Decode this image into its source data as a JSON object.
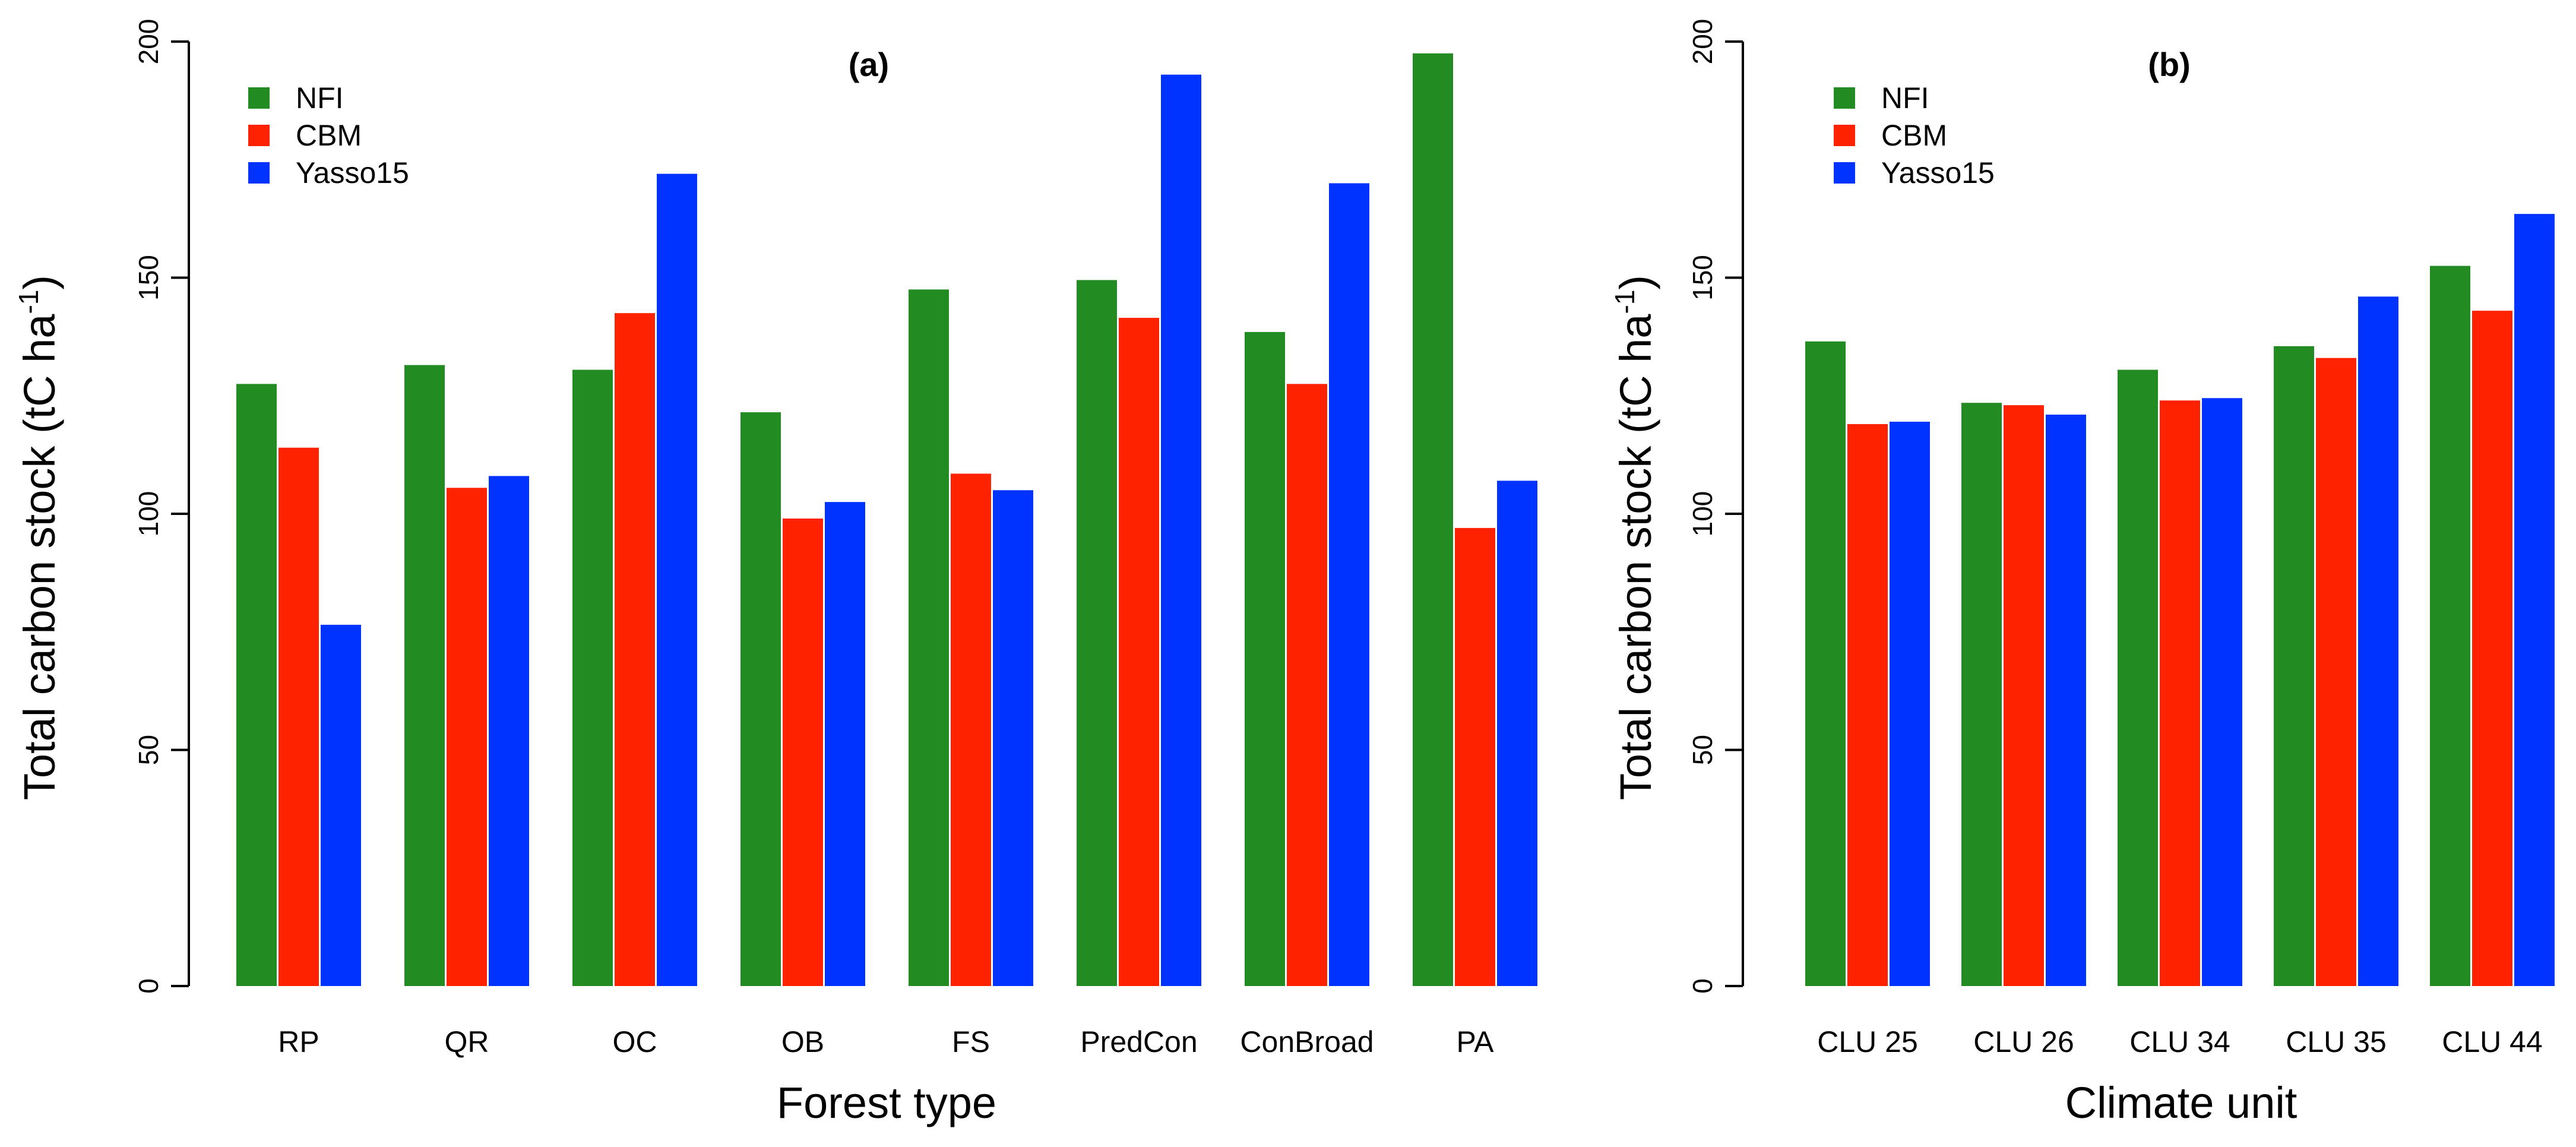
{
  "chart_data": [
    {
      "type": "bar",
      "title": "(a)",
      "xlabel": "Forest type",
      "ylabel": "Total carbon stock (tC ha",
      "ylabel_unit_sup": "-1",
      "ylabel_close": ")",
      "ylim": [
        0,
        200
      ],
      "yticks": [
        "0",
        "50",
        "100",
        "150",
        "200"
      ],
      "ytick_values": [
        0,
        50,
        100,
        150,
        200
      ],
      "grid": false,
      "legend": "top-left",
      "categories": [
        "RP",
        "QR",
        "OC",
        "OB",
        "FS",
        "PredCon",
        "ConBroad",
        "PA"
      ],
      "series": [
        {
          "name": "NFI",
          "color": "#228B22",
          "values": [
            127.5,
            131.5,
            130.5,
            121.5,
            147.5,
            149.5,
            138.5,
            197.5
          ]
        },
        {
          "name": "CBM",
          "color": "#FF2200",
          "values": [
            114,
            105.5,
            142.5,
            99,
            108.5,
            141.5,
            127.5,
            97
          ]
        },
        {
          "name": "Yasso15",
          "color": "#0033FF",
          "values": [
            76.5,
            108,
            172,
            102.5,
            105,
            193,
            170,
            107
          ]
        }
      ]
    },
    {
      "type": "bar",
      "title": "(b)",
      "xlabel": "Climate unit",
      "ylabel": "Total carbon stock (tC ha",
      "ylabel_unit_sup": "-1",
      "ylabel_close": ")",
      "ylim": [
        0,
        200
      ],
      "yticks": [
        "0",
        "50",
        "100",
        "150",
        "200"
      ],
      "ytick_values": [
        0,
        50,
        100,
        150,
        200
      ],
      "grid": false,
      "legend": "top-left",
      "categories": [
        "CLU 25",
        "CLU 26",
        "CLU 34",
        "CLU 35",
        "CLU 44"
      ],
      "series": [
        {
          "name": "NFI",
          "color": "#228B22",
          "values": [
            136.5,
            123.5,
            130.5,
            135.5,
            152.5
          ]
        },
        {
          "name": "CBM",
          "color": "#FF2200",
          "values": [
            119,
            123,
            124,
            133,
            143
          ]
        },
        {
          "name": "Yasso15",
          "color": "#0033FF",
          "values": [
            119.5,
            121,
            124.5,
            146,
            163.5
          ]
        }
      ]
    }
  ]
}
